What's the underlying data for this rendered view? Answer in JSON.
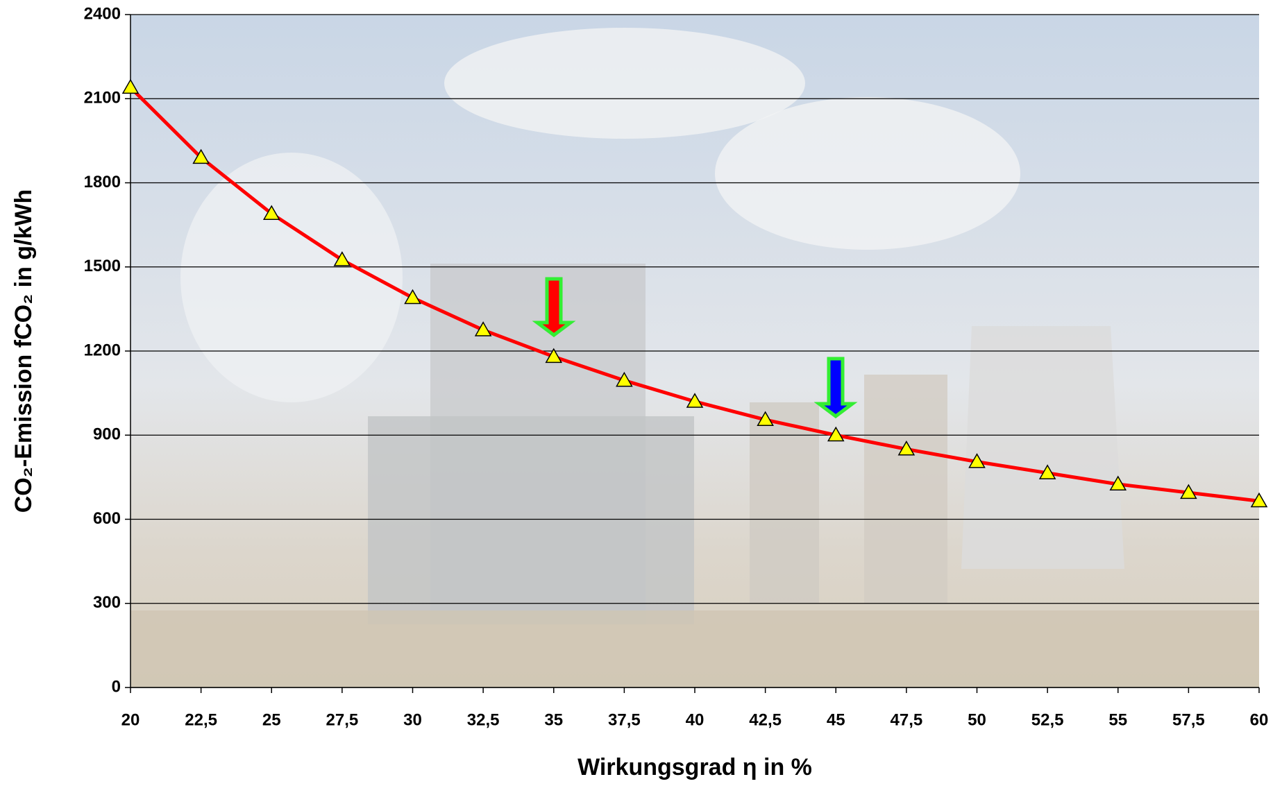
{
  "chart_data": {
    "type": "line",
    "x_label": "Wirkungsgrad η in %",
    "y_label": "CO₂-Emission fCO₂ in g/kWh",
    "x": [
      20,
      22.5,
      25,
      27.5,
      30,
      32.5,
      35,
      37.5,
      40,
      42.5,
      45,
      47.5,
      50,
      52.5,
      55,
      57.5,
      60
    ],
    "series": [
      {
        "color": "#ff0000",
        "marker_color": "#ffff00",
        "values": [
          2140,
          1890,
          1690,
          1525,
          1390,
          1275,
          1180,
          1095,
          1020,
          955,
          900,
          850,
          805,
          765,
          725,
          695,
          665
        ]
      }
    ],
    "xlim": [
      20,
      60
    ],
    "xticks": [
      20,
      {
        "value": 22.5,
        "label": "22,5"
      },
      25,
      {
        "value": 27.5,
        "label": "27,5"
      },
      30,
      {
        "value": 32.5,
        "label": "32,5"
      },
      35,
      {
        "value": 37.5,
        "label": "37,5"
      },
      40,
      {
        "value": 42.5,
        "label": "42,5"
      },
      45,
      {
        "value": 47.5,
        "label": "47,5"
      },
      50,
      {
        "value": 52.5,
        "label": "52,5"
      },
      55,
      {
        "value": 57.5,
        "label": "57,5"
      },
      60
    ],
    "ylim": [
      0,
      2400
    ],
    "yticks": [
      0,
      300,
      600,
      900,
      1200,
      1500,
      1800,
      2100,
      2400
    ],
    "grid": true
  }
}
